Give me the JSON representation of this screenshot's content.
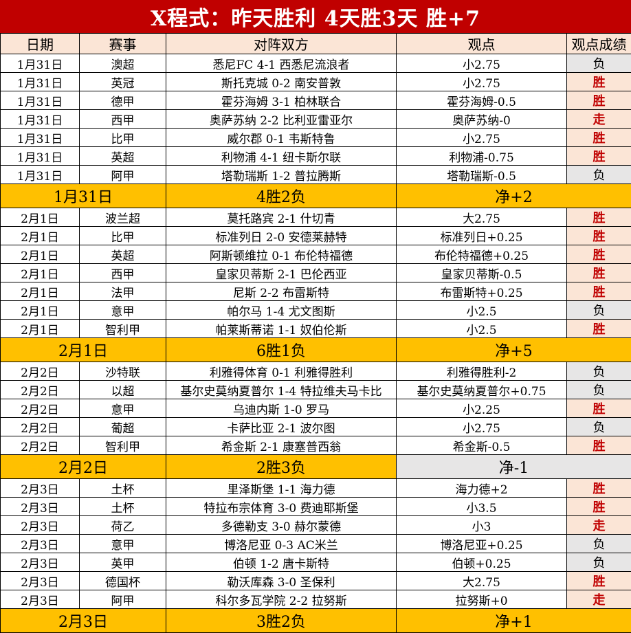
{
  "title": "X程式：昨天胜利 4天胜3天 胜+7",
  "columns": [
    "日期",
    "赛事",
    "对阵双方",
    "观点",
    "观点成绩"
  ],
  "colors": {
    "title_background": "#c00000",
    "title_text": "#ffffff",
    "win_cell_background": "#fbe5d6",
    "win_text": "#c00000",
    "loss_cell_background": "#e7e6e6",
    "summary_background": "#ffc000",
    "negative_net_background": "#e7e6e6",
    "header_background": "#fbe5d6",
    "grid_border": "#000000"
  },
  "rows": [
    {
      "type": "match",
      "date": "1月31日",
      "league": "澳超",
      "matchup": "悉尼FC 4-1 西悉尼流浪者",
      "pick": "小2.75",
      "result": "负"
    },
    {
      "type": "match",
      "date": "1月31日",
      "league": "英冠",
      "matchup": "斯托克城 0-2 南安普敦",
      "pick": "小2.75",
      "result": "胜"
    },
    {
      "type": "match",
      "date": "1月31日",
      "league": "德甲",
      "matchup": "霍芬海姆 3-1 柏林联合",
      "pick": "霍芬海姆-0.5",
      "result": "胜"
    },
    {
      "type": "match",
      "date": "1月31日",
      "league": "西甲",
      "matchup": "奥萨苏纳 2-2 比利亚雷亚尔",
      "pick": "奥萨苏纳-0",
      "result": "走"
    },
    {
      "type": "match",
      "date": "1月31日",
      "league": "比甲",
      "matchup": "威尔郡 0-1 韦斯特鲁",
      "pick": "小2.75",
      "result": "胜"
    },
    {
      "type": "match",
      "date": "1月31日",
      "league": "英超",
      "matchup": "利物浦 4-1 纽卡斯尔联",
      "pick": "利物浦-0.75",
      "result": "胜"
    },
    {
      "type": "match",
      "date": "1月31日",
      "league": "阿甲",
      "matchup": "塔勒瑞斯 1-2 普拉腾斯",
      "pick": "塔勒瑞斯-0.5",
      "result": "负"
    },
    {
      "type": "summary",
      "date": "1月31日",
      "record": "4胜2负",
      "net": "净+2",
      "net_negative": false
    },
    {
      "type": "match",
      "date": "2月1日",
      "league": "波兰超",
      "matchup": "莫托路宾 2-1 什切青",
      "pick": "大2.75",
      "result": "胜"
    },
    {
      "type": "match",
      "date": "2月1日",
      "league": "比甲",
      "matchup": "标准列日 2-0 安德莱赫特",
      "pick": "标准列日+0.25",
      "result": "胜"
    },
    {
      "type": "match",
      "date": "2月1日",
      "league": "英超",
      "matchup": "阿斯顿维拉 0-1 布伦特福德",
      "pick": "布伦特福德+0.25",
      "result": "胜"
    },
    {
      "type": "match",
      "date": "2月1日",
      "league": "西甲",
      "matchup": "皇家贝蒂斯 2-1 巴伦西亚",
      "pick": "皇家贝蒂斯-0.5",
      "result": "胜"
    },
    {
      "type": "match",
      "date": "2月1日",
      "league": "法甲",
      "matchup": "尼斯 2-2 布雷斯特",
      "pick": "布雷斯特+0.25",
      "result": "胜"
    },
    {
      "type": "match",
      "date": "2月1日",
      "league": "意甲",
      "matchup": "帕尔马 1-4 尤文图斯",
      "pick": "小2.5",
      "result": "负"
    },
    {
      "type": "match",
      "date": "2月1日",
      "league": "智利甲",
      "matchup": "帕莱斯蒂诺 1-1 奴伯伦斯",
      "pick": "小2.5",
      "result": "胜"
    },
    {
      "type": "summary",
      "date": "2月1日",
      "record": "6胜1负",
      "net": "净+5",
      "net_negative": false
    },
    {
      "type": "match",
      "date": "2月2日",
      "league": "沙特联",
      "matchup": "利雅得体育 0-1 利雅得胜利",
      "pick": "利雅得胜利-2",
      "result": "负"
    },
    {
      "type": "match",
      "date": "2月2日",
      "league": "以超",
      "matchup": "基尔史莫纳夏普尔 1-4 特拉维夫马卡比",
      "pick": "基尔史莫纳夏普尔+0.75",
      "result": "负"
    },
    {
      "type": "match",
      "date": "2月2日",
      "league": "意甲",
      "matchup": "乌迪内斯 1-0 罗马",
      "pick": "小2.25",
      "result": "胜"
    },
    {
      "type": "match",
      "date": "2月2日",
      "league": "葡超",
      "matchup": "卡萨比亚 2-1 波尔图",
      "pick": "小2.75",
      "result": "负"
    },
    {
      "type": "match",
      "date": "2月2日",
      "league": "智利甲",
      "matchup": "希金斯 2-1 康塞普西翁",
      "pick": "希金斯-0.5",
      "result": "胜"
    },
    {
      "type": "summary",
      "date": "2月2日",
      "record": "2胜3负",
      "net": "净-1",
      "net_negative": true
    },
    {
      "type": "match",
      "date": "2月3日",
      "league": "土杯",
      "matchup": "里泽斯堡 1-1 海力德",
      "pick": "海力德+2",
      "result": "胜"
    },
    {
      "type": "match",
      "date": "2月3日",
      "league": "土杯",
      "matchup": "特拉布宗体育 3-0 费迪耶斯堡",
      "pick": "小3.5",
      "result": "胜"
    },
    {
      "type": "match",
      "date": "2月3日",
      "league": "荷乙",
      "matchup": "多德勒支 3-0 赫尔蒙德",
      "pick": "小3",
      "result": "走"
    },
    {
      "type": "match",
      "date": "2月3日",
      "league": "意甲",
      "matchup": "博洛尼亚 0-3 AC米兰",
      "pick": "博洛尼亚+0.25",
      "result": "负"
    },
    {
      "type": "match",
      "date": "2月3日",
      "league": "英甲",
      "matchup": "伯顿 1-2 唐卡斯特",
      "pick": "伯顿+0.25",
      "result": "负"
    },
    {
      "type": "match",
      "date": "2月3日",
      "league": "德国杯",
      "matchup": "勒沃库森 3-0 圣保利",
      "pick": "大2.75",
      "result": "胜"
    },
    {
      "type": "match",
      "date": "2月3日",
      "league": "阿甲",
      "matchup": "科尔多瓦学院 2-2 拉努斯",
      "pick": "拉努斯+0",
      "result": "走"
    },
    {
      "type": "summary",
      "date": "2月3日",
      "record": "3胜2负",
      "net": "净+1",
      "net_negative": false
    }
  ]
}
